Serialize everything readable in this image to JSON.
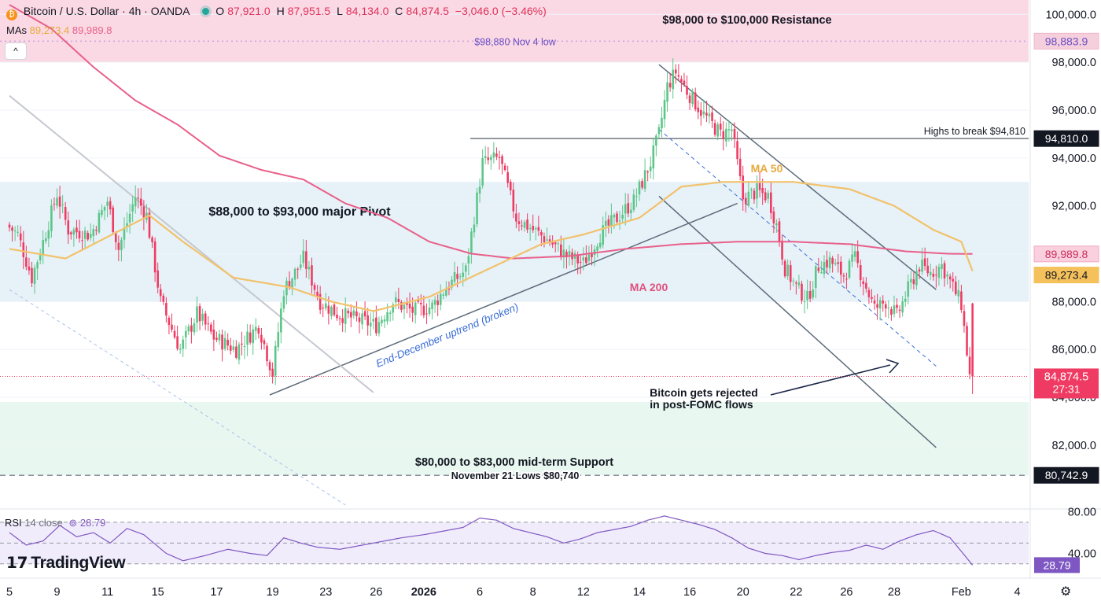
{
  "header": {
    "symbol": "Bitcoin / U.S. Dollar · 4h · OANDA",
    "o_label": "O",
    "o_value": "87,921.0",
    "h_label": "H",
    "h_value": "87,951.5",
    "l_label": "L",
    "l_value": "84,134.0",
    "c_label": "C",
    "c_value": "84,874.5",
    "change": "−3,046.0 (−3.46%)",
    "mas_label": "MAs",
    "ma50_value": "89,273.4",
    "ma200_value": "89,989.8",
    "collapse": "^"
  },
  "rsi_header": {
    "label": "RSI",
    "params": "14 close",
    "value": "28.79"
  },
  "logo": "TradingView",
  "colors": {
    "up": "#26a69a",
    "up_body": "#5cc689",
    "down": "#ef3b63",
    "ma50": "#f2c26b",
    "ma200": "#e8608a",
    "resistance_zone": "#fbd9e4",
    "pivot_zone": "#e6f1f8",
    "support_zone": "#e8f7ef",
    "rsi": "#7e57c2",
    "trendline": "#5d6b7a",
    "accent_blue": "#3a6ed8"
  },
  "chart_data": {
    "type": "candlestick",
    "title": "Bitcoin / U.S. Dollar · 4h · OANDA",
    "ylim": [
      79400,
      100600
    ],
    "y_ticks": [
      "100,000.0",
      "98,000.0",
      "96,000.0",
      "94,000.0",
      "92,000.0",
      "90,000.0",
      "88,000.0",
      "86,000.0",
      "84,000.0",
      "82,000.0"
    ],
    "y_tick_values": [
      100000,
      98000,
      96000,
      94000,
      92000,
      90000,
      88000,
      86000,
      84000,
      82000
    ],
    "x_ticks": [
      "5",
      "9",
      "11",
      "15",
      "17",
      "19",
      "23",
      "26",
      "2026",
      "6",
      "8",
      "12",
      "14",
      "16",
      "20",
      "22",
      "26",
      "28",
      "Feb",
      "4"
    ],
    "x_tick_index": [
      0,
      17,
      35,
      53,
      74,
      94,
      113,
      131,
      148,
      168,
      187,
      205,
      225,
      243,
      262,
      281,
      299,
      316,
      340,
      360
    ],
    "bar_count": 365,
    "price_path": [
      [
        0,
        91200
      ],
      [
        4,
        90800
      ],
      [
        9,
        89000
      ],
      [
        13,
        90500
      ],
      [
        18,
        92500
      ],
      [
        22,
        91000
      ],
      [
        30,
        90800
      ],
      [
        36,
        92200
      ],
      [
        40,
        90200
      ],
      [
        46,
        92400
      ],
      [
        50,
        91600
      ],
      [
        55,
        88000
      ],
      [
        62,
        86000
      ],
      [
        68,
        87500
      ],
      [
        74,
        86500
      ],
      [
        82,
        86000
      ],
      [
        90,
        87000
      ],
      [
        95,
        85000
      ],
      [
        99,
        88500
      ],
      [
        103,
        89200
      ],
      [
        106,
        89800
      ],
      [
        112,
        88000
      ],
      [
        118,
        87500
      ],
      [
        124,
        87300
      ],
      [
        132,
        87000
      ],
      [
        138,
        88000
      ],
      [
        145,
        87600
      ],
      [
        152,
        87800
      ],
      [
        157,
        88600
      ],
      [
        164,
        89300
      ],
      [
        170,
        93800
      ],
      [
        176,
        94000
      ],
      [
        182,
        91500
      ],
      [
        188,
        91000
      ],
      [
        194,
        90500
      ],
      [
        200,
        89900
      ],
      [
        206,
        89600
      ],
      [
        212,
        90800
      ],
      [
        218,
        91500
      ],
      [
        224,
        92200
      ],
      [
        230,
        93800
      ],
      [
        233,
        95000
      ],
      [
        236,
        97000
      ],
      [
        239,
        97600
      ],
      [
        243,
        96800
      ],
      [
        249,
        95800
      ],
      [
        255,
        95000
      ],
      [
        259,
        95200
      ],
      [
        263,
        92300
      ],
      [
        268,
        92600
      ],
      [
        272,
        92400
      ],
      [
        275,
        91200
      ],
      [
        278,
        89400
      ],
      [
        282,
        88600
      ],
      [
        286,
        88100
      ],
      [
        290,
        89500
      ],
      [
        294,
        89700
      ],
      [
        299,
        89100
      ],
      [
        303,
        89800
      ],
      [
        306,
        88900
      ],
      [
        310,
        87700
      ],
      [
        314,
        88000
      ],
      [
        318,
        87400
      ],
      [
        322,
        88500
      ],
      [
        326,
        89500
      ],
      [
        330,
        89200
      ],
      [
        334,
        89500
      ],
      [
        338,
        88600
      ],
      [
        341,
        87900
      ],
      [
        344,
        84874.5
      ]
    ],
    "ma50_path": [
      [
        0,
        90200
      ],
      [
        20,
        89800
      ],
      [
        40,
        91000
      ],
      [
        50,
        91600
      ],
      [
        62,
        90500
      ],
      [
        80,
        89000
      ],
      [
        100,
        88600
      ],
      [
        115,
        88000
      ],
      [
        130,
        87600
      ],
      [
        150,
        88200
      ],
      [
        170,
        89300
      ],
      [
        190,
        90400
      ],
      [
        205,
        90800
      ],
      [
        225,
        91500
      ],
      [
        240,
        92800
      ],
      [
        255,
        93000
      ],
      [
        265,
        93000
      ],
      [
        280,
        93000
      ],
      [
        300,
        92700
      ],
      [
        316,
        92000
      ],
      [
        330,
        91000
      ],
      [
        340,
        90500
      ],
      [
        344,
        89273.4
      ]
    ],
    "ma200_path": [
      [
        0,
        100400
      ],
      [
        15,
        99400
      ],
      [
        30,
        97800
      ],
      [
        45,
        96400
      ],
      [
        60,
        95400
      ],
      [
        75,
        94100
      ],
      [
        90,
        93500
      ],
      [
        105,
        93100
      ],
      [
        120,
        92100
      ],
      [
        135,
        91500
      ],
      [
        150,
        90500
      ],
      [
        165,
        90000
      ],
      [
        180,
        89800
      ],
      [
        200,
        89900
      ],
      [
        220,
        90200
      ],
      [
        240,
        90400
      ],
      [
        260,
        90500
      ],
      [
        280,
        90500
      ],
      [
        300,
        90400
      ],
      [
        320,
        90100
      ],
      [
        335,
        90000
      ],
      [
        344,
        89989.8
      ]
    ],
    "rsi_path": [
      [
        0,
        60
      ],
      [
        6,
        48
      ],
      [
        12,
        52
      ],
      [
        18,
        67
      ],
      [
        24,
        56
      ],
      [
        30,
        60
      ],
      [
        36,
        50
      ],
      [
        42,
        64
      ],
      [
        48,
        58
      ],
      [
        56,
        40
      ],
      [
        62,
        33
      ],
      [
        70,
        38
      ],
      [
        78,
        44
      ],
      [
        86,
        40
      ],
      [
        92,
        38
      ],
      [
        98,
        55
      ],
      [
        104,
        50
      ],
      [
        110,
        46
      ],
      [
        118,
        44
      ],
      [
        126,
        48
      ],
      [
        134,
        52
      ],
      [
        140,
        55
      ],
      [
        148,
        58
      ],
      [
        156,
        62
      ],
      [
        162,
        65
      ],
      [
        168,
        74
      ],
      [
        174,
        72
      ],
      [
        180,
        64
      ],
      [
        186,
        60
      ],
      [
        192,
        56
      ],
      [
        198,
        50
      ],
      [
        204,
        54
      ],
      [
        210,
        60
      ],
      [
        216,
        63
      ],
      [
        222,
        66
      ],
      [
        228,
        72
      ],
      [
        234,
        76
      ],
      [
        240,
        72
      ],
      [
        246,
        68
      ],
      [
        252,
        63
      ],
      [
        258,
        55
      ],
      [
        264,
        45
      ],
      [
        270,
        40
      ],
      [
        276,
        38
      ],
      [
        282,
        34
      ],
      [
        288,
        38
      ],
      [
        294,
        41
      ],
      [
        300,
        43
      ],
      [
        306,
        48
      ],
      [
        312,
        44
      ],
      [
        318,
        52
      ],
      [
        324,
        58
      ],
      [
        330,
        62
      ],
      [
        336,
        55
      ],
      [
        340,
        42
      ],
      [
        344,
        28.79
      ]
    ],
    "rsi_ticks": [
      "80.00",
      "40.00"
    ],
    "rsi_tick_values": [
      80,
      40
    ],
    "rsi_ylim": [
      20,
      82
    ],
    "rsi_levels": [
      70,
      50,
      30
    ],
    "zones": [
      {
        "name": "resistance",
        "from": 98000,
        "to": 100600,
        "label": "$98,000 to $100,000 Resistance"
      },
      {
        "name": "pivot",
        "from": 88000,
        "to": 93000,
        "label": "$88,000 to $93,000 major Pivot"
      },
      {
        "name": "support",
        "from": 80740,
        "to": 83800,
        "label": "$80,000 to $83,000 mid-term Support"
      }
    ],
    "levels": [
      {
        "name": "nov4-low",
        "price": 98880,
        "label": "$98,880 Nov 4 low",
        "badge": "98,883.9",
        "color": "#6a4fc4"
      },
      {
        "name": "highs-to-break",
        "price": 94810,
        "label": "Highs to break $94,810",
        "badge": "94,810.0",
        "color": "#131722"
      },
      {
        "name": "nov21-lows",
        "price": 80740,
        "label": "November 21 Lows $80,740",
        "badge": "80,742.9",
        "color": "#131722"
      }
    ],
    "trendlines": [
      {
        "name": "uptrend",
        "x1": 93,
        "y1": 84100,
        "x2": 260,
        "y2": 92100,
        "label": "End-December uptrend (broken)"
      },
      {
        "name": "channel-upper",
        "x1": 232,
        "y1": 97900,
        "x2": 331,
        "y2": 88500
      },
      {
        "name": "channel-lower",
        "x1": 232,
        "y1": 92400,
        "x2": 331,
        "y2": 81900
      },
      {
        "name": "channel-mid",
        "x1": 232,
        "y1": 95200,
        "x2": 331,
        "y2": 85300
      },
      {
        "name": "downtrend-grey",
        "x1": 0,
        "y1": 96600,
        "x2": 130,
        "y2": 84200
      },
      {
        "name": "downtrend-blue",
        "x1": 0,
        "y1": 88500,
        "x2": 120,
        "y2": 79500
      }
    ],
    "ma_labels": {
      "ma50": "MA 50",
      "ma200": "MA 200"
    },
    "annotation": {
      "line1": "Bitcoin gets rejected",
      "line2": "in post-FOMC flows"
    },
    "price_badges": {
      "ma200": "89,989.8",
      "ma50": "89,273.4",
      "last": "84,874.5",
      "countdown": "27:31",
      "rsi": "28.79"
    }
  }
}
